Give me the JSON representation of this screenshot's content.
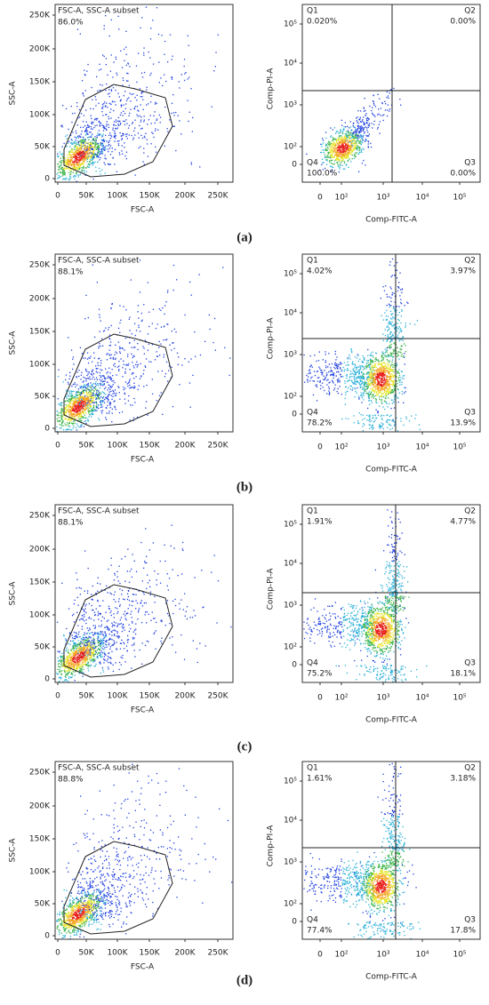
{
  "panels": [
    {
      "label": "(a)",
      "gate_plot": {
        "gate": "FSC-A, SSC-A subset",
        "percent": "86.0%",
        "x_label": "FSC-A",
        "y_label": "SSC-A",
        "x_ticks": [
          "0",
          "50K",
          "100K",
          "150K",
          "200K",
          "250K"
        ],
        "y_ticks": [
          "0",
          "50K",
          "100K",
          "150K",
          "200K",
          "250K"
        ]
      },
      "quadrant_plot": {
        "x_label": "Comp-FITC-A",
        "y_label": "Comp-PI-A",
        "x_ticks": [
          "0",
          "10²",
          "10³",
          "10⁴",
          "10⁵"
        ],
        "y_ticks": [
          "0",
          "10²",
          "10³",
          "10⁴",
          "10⁵"
        ],
        "quadrants": [
          {
            "name": "Q1",
            "percent": "0.020%"
          },
          {
            "name": "Q2",
            "percent": "0.00%"
          },
          {
            "name": "Q3",
            "percent": "0.00%"
          },
          {
            "name": "Q4",
            "percent": "100.0%"
          }
        ]
      }
    },
    {
      "label": "(b)",
      "gate_plot": {
        "gate": "FSC-A, SSC-A subset",
        "percent": "88.1%",
        "x_label": "FSC-A",
        "y_label": "SSC-A",
        "x_ticks": [
          "0",
          "50K",
          "100K",
          "150K",
          "200K",
          "250K"
        ],
        "y_ticks": [
          "0",
          "50K",
          "100K",
          "150K",
          "200K",
          "250K"
        ]
      },
      "quadrant_plot": {
        "x_label": "Comp-FITC-A",
        "y_label": "Comp-PI-A",
        "x_ticks": [
          "0",
          "10²",
          "10³",
          "10⁴",
          "10⁵"
        ],
        "y_ticks": [
          "0",
          "10²",
          "10³",
          "10⁴",
          "10⁵"
        ],
        "quadrants": [
          {
            "name": "Q1",
            "percent": "4.02%"
          },
          {
            "name": "Q2",
            "percent": "3.97%"
          },
          {
            "name": "Q3",
            "percent": "13.9%"
          },
          {
            "name": "Q4",
            "percent": "78.2%"
          }
        ]
      }
    },
    {
      "label": "(c)",
      "gate_plot": {
        "gate": "FSC-A, SSC-A subset",
        "percent": "88.1%",
        "x_label": "FSC-A",
        "y_label": "SSC-A",
        "x_ticks": [
          "0",
          "50K",
          "100K",
          "150K",
          "200K",
          "250K"
        ],
        "y_ticks": [
          "0",
          "50K",
          "100K",
          "150K",
          "200K",
          "250K"
        ]
      },
      "quadrant_plot": {
        "x_label": "Comp-FITC-A",
        "y_label": "Comp-PI-A",
        "x_ticks": [
          "0",
          "10²",
          "10³",
          "10⁴",
          "10⁵"
        ],
        "y_ticks": [
          "0",
          "10²",
          "10³",
          "10⁴",
          "10⁵"
        ],
        "quadrants": [
          {
            "name": "Q1",
            "percent": "1.91%"
          },
          {
            "name": "Q2",
            "percent": "4.77%"
          },
          {
            "name": "Q3",
            "percent": "18.1%"
          },
          {
            "name": "Q4",
            "percent": "75.2%"
          }
        ]
      }
    },
    {
      "label": "(d)",
      "gate_plot": {
        "gate": "FSC-A, SSC-A subset",
        "percent": "88.8%",
        "x_label": "FSC-A",
        "y_label": "SSC-A",
        "x_ticks": [
          "0",
          "50K",
          "100K",
          "150K",
          "200K",
          "250K"
        ],
        "y_ticks": [
          "0",
          "50K",
          "100K",
          "150K",
          "200K",
          "250K"
        ]
      },
      "quadrant_plot": {
        "x_label": "Comp-FITC-A",
        "y_label": "Comp-PI-A",
        "x_ticks": [
          "0",
          "10²",
          "10³",
          "10⁴",
          "10⁵"
        ],
        "y_ticks": [
          "0",
          "10²",
          "10³",
          "10⁴",
          "10⁵"
        ],
        "quadrants": [
          {
            "name": "Q1",
            "percent": "1.61%"
          },
          {
            "name": "Q2",
            "percent": "3.18%"
          },
          {
            "name": "Q3",
            "percent": "17.8%"
          },
          {
            "name": "Q4",
            "percent": "77.4%"
          }
        ]
      }
    }
  ]
}
